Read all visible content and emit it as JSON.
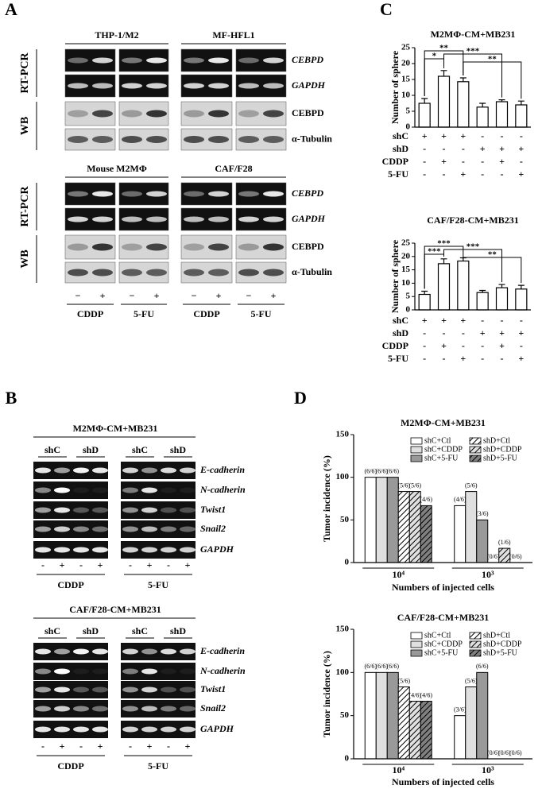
{
  "gel_a": {
    "letter": "A",
    "blocks": [
      {
        "groups": [
          "THP-1/M2",
          "MF-HFL1"
        ]
      },
      {
        "groups": [
          "Mouse M2MΦ",
          "CAF/F28"
        ]
      }
    ],
    "methods": [
      "RT-PCR",
      "WB"
    ],
    "genes": [
      "CEBPD",
      "GAPDH",
      "CEBPD",
      "α-Tubulin"
    ],
    "lanes": [
      "−",
      "+"
    ],
    "treatments": [
      "CDDP",
      "5-FU",
      "CDDP",
      "5-FU"
    ]
  },
  "gel_b": {
    "letter": "B",
    "blocks": [
      {
        "title": "M2MΦ-CM+MB231"
      },
      {
        "title": "CAF/F28-CM+MB231"
      }
    ],
    "groups": [
      "shC",
      "shD"
    ],
    "genes": [
      "E-cadherin",
      "N-cadherin",
      "Twist1",
      "Snail2",
      "GAPDH"
    ],
    "lanes": [
      "-",
      "+"
    ],
    "treatments": [
      "CDDP",
      "5-FU"
    ]
  },
  "letters": {
    "C": "C",
    "D": "D"
  },
  "chart_data": [
    {
      "type": "bar",
      "title": "M2MΦ-CM+MB231",
      "ylabel": "Number of sphere",
      "ylim": [
        0,
        25
      ],
      "yticks": [
        0,
        5,
        10,
        15,
        20,
        25
      ],
      "color": "#ffffff",
      "values": [
        7.5,
        16,
        14.3,
        6.3,
        8,
        7
      ],
      "errors": [
        1.5,
        1.8,
        1.2,
        1.2,
        0.6,
        1.2
      ],
      "annotations": [
        {
          "text": "**",
          "from": 0,
          "to": 2
        },
        {
          "text": "*",
          "from": 0,
          "to": 1
        },
        {
          "text": "***",
          "from": 1,
          "to": 4
        },
        {
          "text": "**",
          "from": 2,
          "to": 5
        }
      ],
      "conditions": {
        "rows": [
          "shC",
          "shD",
          "CDDP",
          "5-FU"
        ],
        "marks": [
          [
            "+",
            "+",
            "+",
            "-",
            "-",
            "-"
          ],
          [
            "-",
            "-",
            "-",
            "+",
            "+",
            "+"
          ],
          [
            "-",
            "+",
            "-",
            "-",
            "+",
            "-"
          ],
          [
            "-",
            "-",
            "+",
            "-",
            "-",
            "+"
          ]
        ]
      }
    },
    {
      "type": "bar",
      "title": "CAF/F28-CM+MB231",
      "ylabel": "Number of sphere",
      "ylim": [
        0,
        25
      ],
      "yticks": [
        0,
        5,
        10,
        15,
        20,
        25
      ],
      "color": "#ffffff",
      "values": [
        5.8,
        17.3,
        18.3,
        6.5,
        8.3,
        7.8
      ],
      "errors": [
        1.2,
        1.8,
        1.2,
        0.8,
        1.2,
        1.4
      ],
      "annotations": [
        {
          "text": "***",
          "from": 0,
          "to": 2
        },
        {
          "text": "***",
          "from": 0,
          "to": 1
        },
        {
          "text": "***",
          "from": 1,
          "to": 4
        },
        {
          "text": "**",
          "from": 2,
          "to": 5
        }
      ],
      "conditions": {
        "rows": [
          "shC",
          "shD",
          "CDDP",
          "5-FU"
        ],
        "marks": [
          [
            "+",
            "+",
            "+",
            "-",
            "-",
            "-"
          ],
          [
            "-",
            "-",
            "-",
            "+",
            "+",
            "+"
          ],
          [
            "-",
            "+",
            "-",
            "-",
            "+",
            "-"
          ],
          [
            "-",
            "-",
            "+",
            "-",
            "-",
            "+"
          ]
        ]
      }
    },
    {
      "type": "grouped_bar",
      "title": "M2MΦ-CM+MB231",
      "ylabel": "Tumor incidence (%)",
      "xlabel": "Numbers of injected cells",
      "categories": [
        "10⁴",
        "10³"
      ],
      "ylim": [
        0,
        150
      ],
      "yticks": [
        0,
        50,
        100,
        150
      ],
      "series": [
        {
          "name": "shC+Ctl",
          "color": "#ffffff",
          "hatch": false,
          "values": [
            100,
            66.7
          ],
          "value_labels": [
            "(6/6)",
            "(4/6)"
          ]
        },
        {
          "name": "shC+CDDP",
          "color": "#e0e0e0",
          "hatch": false,
          "values": [
            100,
            83.3
          ],
          "value_labels": [
            "(6/6)",
            "(5/6)"
          ]
        },
        {
          "name": "shC+5-FU",
          "color": "#999999",
          "hatch": false,
          "values": [
            100,
            50
          ],
          "value_labels": [
            "(6/6)",
            "(3/6)"
          ]
        },
        {
          "name": "shD+Ctl",
          "color": "#ffffff",
          "hatch": true,
          "values": [
            83.3,
            0
          ],
          "value_labels": [
            "(5/6)",
            "(0/6)"
          ]
        },
        {
          "name": "shD+CDDP",
          "color": "#e0e0e0",
          "hatch": true,
          "values": [
            83.3,
            16.7
          ],
          "value_labels": [
            "(5/6)",
            "(1/6)"
          ]
        },
        {
          "name": "shD+5-FU",
          "color": "#808080",
          "hatch": true,
          "values": [
            66.7,
            0
          ],
          "value_labels": [
            "(4/6)",
            "(0/6)"
          ]
        }
      ]
    },
    {
      "type": "grouped_bar",
      "title": "CAF/F28-CM+MB231",
      "ylabel": "Tumor incidence (%)",
      "xlabel": "Numbers of injected cells",
      "categories": [
        "10⁴",
        "10³"
      ],
      "ylim": [
        0,
        150
      ],
      "yticks": [
        0,
        50,
        100,
        150
      ],
      "series": [
        {
          "name": "shC+Ctl",
          "color": "#ffffff",
          "hatch": false,
          "values": [
            100,
            50
          ],
          "value_labels": [
            "(6/6)",
            "(3/6)"
          ]
        },
        {
          "name": "shC+CDDP",
          "color": "#e0e0e0",
          "hatch": false,
          "values": [
            100,
            83.3
          ],
          "value_labels": [
            "(6/6)",
            "(5/6)"
          ]
        },
        {
          "name": "shC+5-FU",
          "color": "#999999",
          "hatch": false,
          "values": [
            100,
            100
          ],
          "value_labels": [
            "(6/6)",
            "(6/6)"
          ]
        },
        {
          "name": "shD+Ctl",
          "color": "#ffffff",
          "hatch": true,
          "values": [
            83.3,
            0
          ],
          "value_labels": [
            "(5/6)",
            "(0/6)"
          ]
        },
        {
          "name": "shD+CDDP",
          "color": "#e0e0e0",
          "hatch": true,
          "values": [
            66.7,
            0
          ],
          "value_labels": [
            "(4/6)",
            "(0/6)"
          ]
        },
        {
          "name": "shD+5-FU",
          "color": "#808080",
          "hatch": true,
          "values": [
            66.7,
            0
          ],
          "value_labels": [
            "(4/6)",
            "(0/6)"
          ]
        }
      ]
    }
  ]
}
